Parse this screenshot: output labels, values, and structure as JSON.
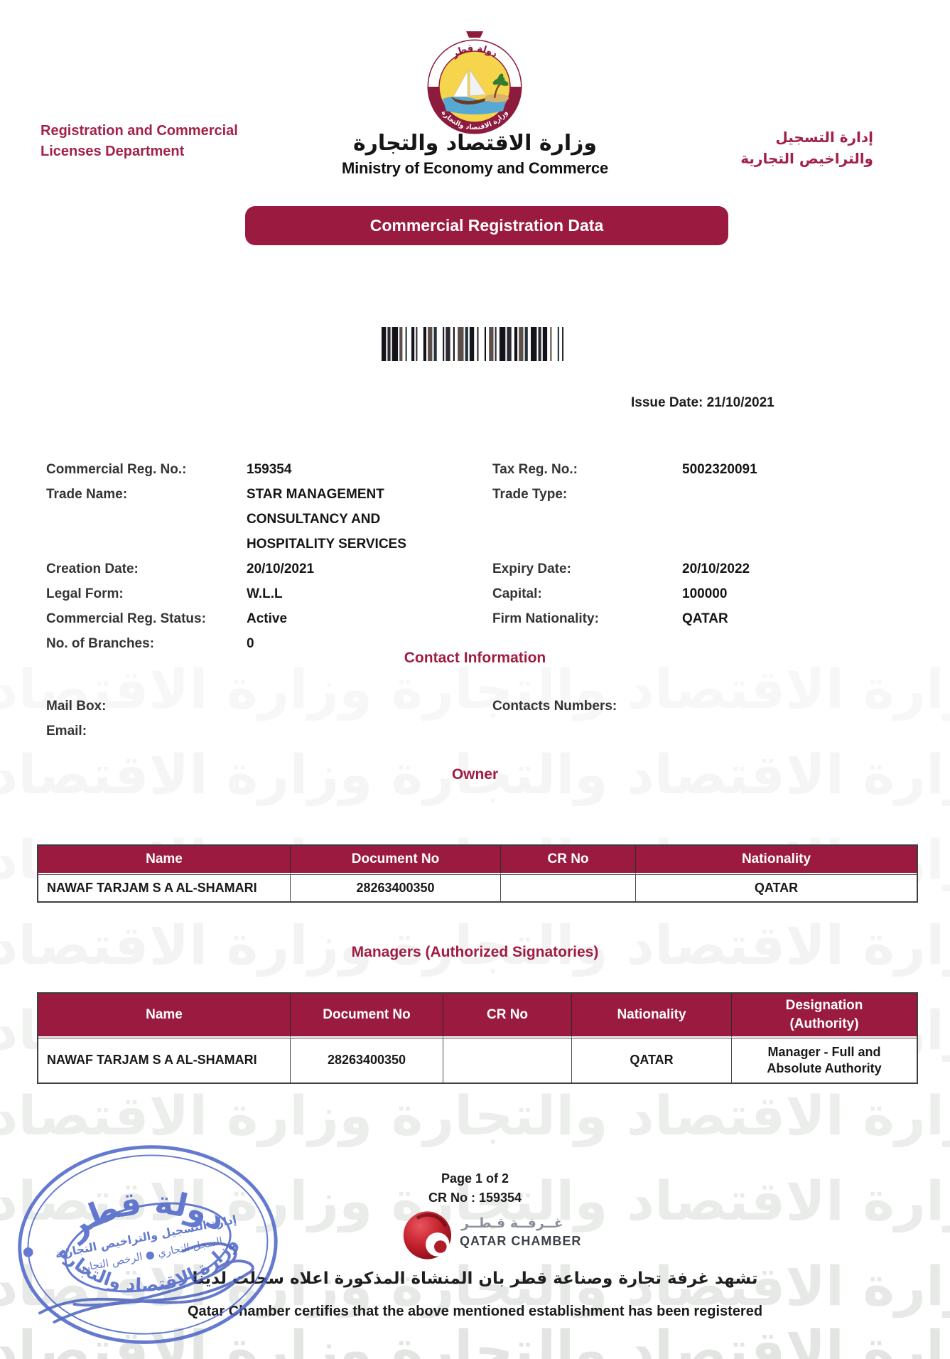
{
  "header": {
    "left_department": "Registration and Commercial\nLicenses Department",
    "right_department_ar": "إدارة التسجيل\nوالتراخيص التجارية",
    "ministry_name_ar": "وزارة الاقتصاد والتجارة",
    "ministry_name_en": "Ministry of Economy and Commerce",
    "banner_title": "Commercial Registration Data"
  },
  "emblem": {
    "ribbon_text_ar": "دولة قطر",
    "bottom_text_ar": "وزارة الاقتصاد والتجارة"
  },
  "issue_date": "Issue Date: 21/10/2021",
  "registration": {
    "rows": [
      {
        "l_label": "Commercial Reg. No.:",
        "l_value": "159354",
        "r_label": "Tax Reg. No.:",
        "r_value": "5002320091"
      },
      {
        "l_label": "Trade Name:",
        "l_value": "STAR MANAGEMENT\nCONSULTANCY AND\nHOSPITALITY SERVICES",
        "r_label": "Trade Type:",
        "r_value": ""
      },
      {
        "l_label": "Creation Date:",
        "l_value": "20/10/2021",
        "r_label": "Expiry Date:",
        "r_value": "20/10/2022"
      },
      {
        "l_label": "Legal Form:",
        "l_value": "W.L.L",
        "r_label": "Capital:",
        "r_value": "100000"
      },
      {
        "l_label": "Commercial Reg. Status:",
        "l_value": "Active",
        "r_label": "Firm Nationality:",
        "r_value": "QATAR"
      },
      {
        "l_label": "No. of Branches:",
        "l_value": "0",
        "r_label": "",
        "r_value": ""
      }
    ]
  },
  "contact": {
    "title": "Contact Information",
    "mail_box_label": "Mail Box:",
    "email_label": "Email:",
    "contacts_numbers_label": "Contacts Numbers:"
  },
  "owner": {
    "title": "Owner",
    "headers": [
      "Name",
      "Document No",
      "CR No",
      "Nationality"
    ],
    "rows": [
      [
        "NAWAF TARJAM S A AL-SHAMARI",
        "28263400350",
        "",
        "QATAR"
      ]
    ]
  },
  "managers": {
    "title": "Managers (Authorized Signatories)",
    "headers": [
      "Name",
      "Document No",
      "CR No",
      "Nationality",
      "Designation\n(Authority)"
    ],
    "rows": [
      [
        "NAWAF TARJAM S A AL-SHAMARI",
        "28263400350",
        "",
        "QATAR",
        "Manager - Full and Absolute Authority"
      ]
    ]
  },
  "footer": {
    "page_info": "Page 1 of 2",
    "cr_no": "CR No : 159354",
    "chamber_name_ar": "غــرفــة قـطــر",
    "chamber_name_en": "QATAR CHAMBER",
    "certification_ar": "تشهد غرفة تجارة وصناعة قطر بان المنشاة المذكورة اعلاه سجلت لدينا",
    "certification_en": "Qatar Chamber certifies that the above mentioned establishment has been registered"
  },
  "stamp": {
    "top_text": "دولة قطر",
    "inner_line1": "إدارة التسجيل والتراخيص التجارية",
    "inner_line2": "السجل التجاري ● الرخص التجارية",
    "bottom_text": "وزارة الاقتصاد والتجارة"
  },
  "watermark_text": "وزارة الاقتصاد والتجارة  وزارة الاقتصاد والتجارة  وزارة الاقتصاد والتجارة",
  "colors": {
    "maroon": "#9A1B3F",
    "stamp_blue": "#4A63C8",
    "chamber_red": "#C3202F",
    "emblem_yellow": "#F6D44C"
  }
}
